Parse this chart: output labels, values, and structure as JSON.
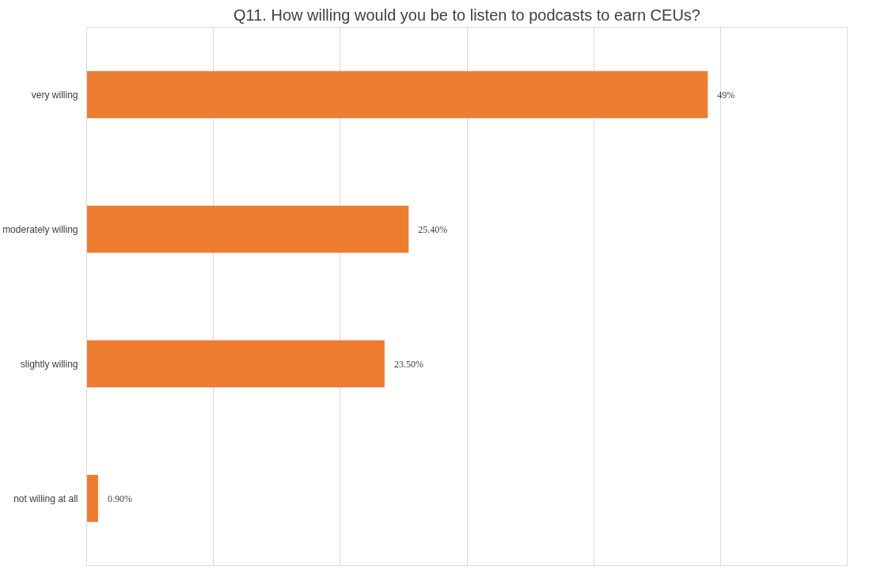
{
  "chart_data": {
    "type": "bar",
    "orientation": "horizontal",
    "title": "Q11. How willing would you be to listen to podcasts to earn CEUs?",
    "categories": [
      "very willing",
      "moderately willing",
      "slightly willing",
      "not willing at all"
    ],
    "values": [
      49,
      25.4,
      23.5,
      0.9
    ],
    "value_labels": [
      "49%",
      "25.40%",
      "23.50%",
      "0.90%"
    ],
    "color": "#ed7d31",
    "xlim": [
      0,
      60
    ],
    "xticks": [
      {
        "value": 0,
        "label": null
      },
      {
        "value": 10,
        "label": null
      },
      {
        "value": 20,
        "label": null
      },
      {
        "value": 30,
        "label": null
      },
      {
        "value": 40,
        "label": null
      },
      {
        "value": 50,
        "label": null
      },
      {
        "value": 60,
        "label": null
      }
    ],
    "grid": "x",
    "tick_labels": "y"
  }
}
